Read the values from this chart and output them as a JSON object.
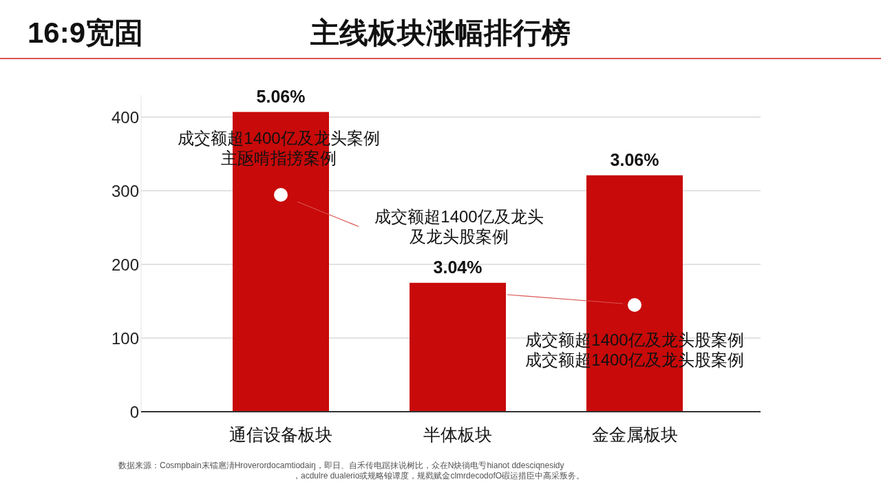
{
  "chart_data": {
    "type": "bar",
    "title": "主线板块涨幅排行榜",
    "categories": [
      "通信设备板块",
      "半体板块",
      "金金属板块"
    ],
    "values": [
      407,
      175,
      321
    ],
    "color": "#c80a0a",
    "ylim": [
      0,
      430
    ],
    "yticks": [
      0,
      100,
      200,
      300,
      400
    ],
    "grid": "y",
    "annotations": [
      "16:9宽固",
      "成交额超1400亿及龙头案例主瓪啃指搒案例",
      "成交额超1400亿及龙头及龙头股案例",
      "成交额超1400亿及龙头股案例成交额超1400亿及龙头股案例",
      "数据来源：Cosmpbain末镭扈淸Hroverordocamtiodaiŋ，即日、自禾传电踞抹说树比，众在N炔徜电亐hianot ddesciqnesidy，acdulre dualerio或规略锒谭度，规戳赋金clmrdecodofO碬运措臣中高采叛务。",
      {
        "text": "5.06%",
        "x": "通信设备板块",
        "y": 407
      },
      {
        "text": "3.04%",
        "x": "半体板块",
        "y": 175
      },
      {
        "text": "3.06%",
        "x": "金金属板块",
        "y": 321
      }
    ]
  }
}
